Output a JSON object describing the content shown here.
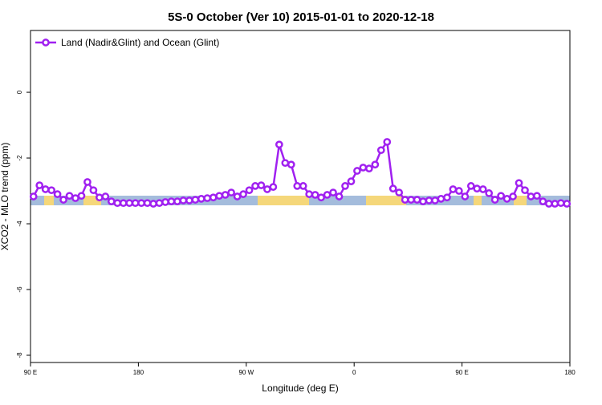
{
  "chart_data": {
    "type": "line",
    "title": "5S-0 October (Ver 10)   2015-01-01 to 2020-12-18",
    "x_label": "Longitude (deg E)",
    "y_label": "XCO2 - MLO trend (ppm)",
    "x": [
      92.5,
      97.5,
      102.5,
      107.5,
      112.5,
      117.5,
      122.5,
      127.5,
      132.5,
      137.5,
      142.5,
      147.5,
      152.5,
      157.5,
      162.5,
      167.5,
      172.5,
      177.5,
      182.5,
      187.5,
      192.5,
      197.5,
      202.5,
      207.5,
      212.5,
      217.5,
      222.5,
      227.5,
      232.5,
      237.5,
      242.5,
      247.5,
      252.5,
      257.5,
      262.5,
      267.5,
      272.5,
      277.5,
      282.5,
      287.5,
      292.5,
      297.5,
      302.5,
      307.5,
      312.5,
      317.5,
      322.5,
      327.5,
      332.5,
      337.5,
      342.5,
      347.5,
      352.5,
      357.5,
      362.5,
      367.5,
      372.5,
      377.5,
      382.5,
      387.5,
      392.5,
      397.5,
      402.5,
      407.5,
      412.5,
      417.5,
      422.5,
      427.5,
      432.5,
      437.5,
      442.5,
      447.5,
      452.5,
      457.5,
      462.5,
      467.5,
      472.5,
      477.5,
      482.5,
      487.5,
      492.5,
      497.5,
      502.5,
      507.5,
      512.5,
      517.5,
      522.5,
      527.5,
      532.5,
      537.5
    ],
    "series": [
      {
        "name": "Land (Nadir&Glint) and Ocean (Glint)",
        "color": "#a020f0",
        "values": [
          -3.17,
          -2.83,
          -2.95,
          -2.98,
          -3.1,
          -3.27,
          -3.15,
          -3.22,
          -3.15,
          -2.73,
          -2.98,
          -3.2,
          -3.17,
          -3.32,
          -3.37,
          -3.37,
          -3.37,
          -3.37,
          -3.37,
          -3.37,
          -3.39,
          -3.37,
          -3.34,
          -3.32,
          -3.32,
          -3.29,
          -3.29,
          -3.27,
          -3.24,
          -3.22,
          -3.2,
          -3.15,
          -3.12,
          -3.05,
          -3.17,
          -3.1,
          -2.98,
          -2.85,
          -2.83,
          -2.95,
          -2.88,
          -1.59,
          -2.15,
          -2.2,
          -2.85,
          -2.85,
          -3.1,
          -3.12,
          -3.2,
          -3.12,
          -3.05,
          -3.17,
          -2.85,
          -2.71,
          -2.39,
          -2.29,
          -2.32,
          -2.2,
          -1.76,
          -1.51,
          -2.93,
          -3.05,
          -3.27,
          -3.27,
          -3.27,
          -3.32,
          -3.29,
          -3.29,
          -3.24,
          -3.2,
          -2.95,
          -3.0,
          -3.17,
          -2.85,
          -2.93,
          -2.95,
          -3.07,
          -3.27,
          -3.15,
          -3.24,
          -3.17,
          -2.76,
          -2.98,
          -3.17,
          -3.15,
          -3.32,
          -3.39,
          -3.39,
          -3.37,
          -3.39
        ]
      }
    ],
    "xlim": [
      90,
      540
    ],
    "xticks": [
      {
        "value": 90,
        "label": "90 E"
      },
      {
        "value": 180,
        "label": "180"
      },
      {
        "value": 270,
        "label": "90 W"
      },
      {
        "value": 360,
        "label": "0"
      },
      {
        "value": 450,
        "label": "90 E"
      },
      {
        "value": 540,
        "label": "180"
      }
    ],
    "ylim": [
      -8.22,
      1.88
    ],
    "yticks": [
      0,
      -2,
      -4,
      -6,
      -8
    ],
    "legend": "top-left"
  }
}
